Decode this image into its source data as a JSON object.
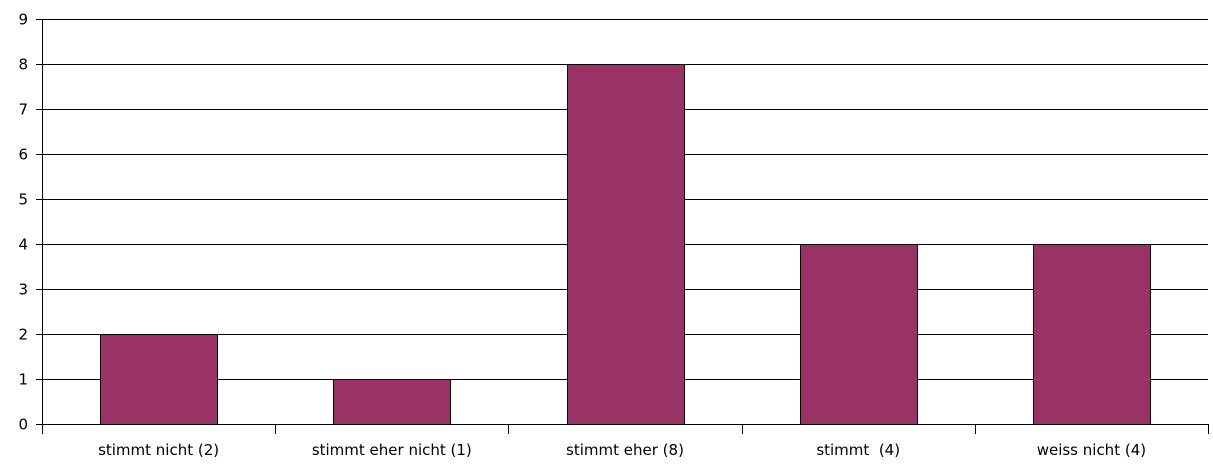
{
  "chart_data": {
    "type": "bar",
    "categories": [
      "stimmt nicht (2)",
      "stimmt eher nicht (1)",
      "stimmt eher (8)",
      "stimmt  (4)",
      "weiss nicht (4)"
    ],
    "values": [
      2,
      1,
      8,
      4,
      4
    ],
    "ylim": [
      0,
      9
    ],
    "yticks": [
      "0",
      "1",
      "2",
      "3",
      "4",
      "5",
      "6",
      "7",
      "8",
      "9"
    ],
    "grid": true,
    "legend": "none",
    "colors": {
      "bar": "#993366",
      "bar_border": "#000000",
      "grid": "#000000",
      "axis": "#000000"
    }
  }
}
